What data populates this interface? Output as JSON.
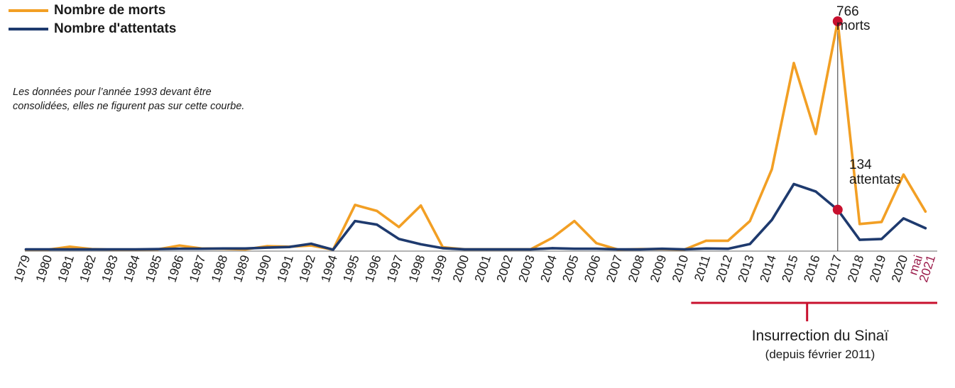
{
  "chart_data": {
    "type": "line",
    "categories": [
      "1979",
      "1980",
      "1981",
      "1982",
      "1983",
      "1984",
      "1985",
      "1986",
      "1987",
      "1988",
      "1989",
      "1990",
      "1991",
      "1992",
      "1994",
      "1995",
      "1996",
      "1997",
      "1998",
      "1999",
      "2000",
      "2001",
      "2002",
      "2003",
      "2004",
      "2005",
      "2006",
      "2007",
      "2008",
      "2009",
      "2010",
      "2011",
      "2012",
      "2013",
      "2014",
      "2015",
      "2016",
      "2017",
      "2018",
      "2019",
      "2020",
      "mai 2021"
    ],
    "series": [
      {
        "name": "Nombre de morts",
        "color": "#f29f24",
        "values": [
          0,
          0,
          10,
          2,
          0,
          0,
          1,
          14,
          4,
          3,
          1,
          12,
          10,
          14,
          0,
          150,
          130,
          76,
          148,
          8,
          1,
          1,
          1,
          1,
          40,
          96,
          22,
          0,
          2,
          2,
          0,
          30,
          30,
          96,
          270,
          626,
          388,
          766,
          86,
          93,
          252,
          128
        ]
      },
      {
        "name": "Nombre d'attentats",
        "color": "#1e3a6e",
        "values": [
          1,
          1,
          1,
          1,
          1,
          1,
          2,
          3,
          3,
          4,
          4,
          7,
          9,
          20,
          0,
          96,
          84,
          36,
          18,
          5,
          1,
          1,
          1,
          1,
          5,
          3,
          3,
          1,
          1,
          3,
          1,
          4,
          3,
          19,
          100,
          220,
          195,
          134,
          33,
          36,
          105,
          72
        ]
      }
    ],
    "legend": {
      "position": "top-left"
    },
    "annotations": {
      "deaths_peak": {
        "value": "766",
        "unit": "morts"
      },
      "attacks_peak": {
        "value": "134",
        "unit": "attentats"
      },
      "note": "Les données pour l’année 1993 devant être consolidées, elles ne figurent pas sur cette courbe.",
      "period_label": "Insurrection du Sinaï",
      "period_sub": "(depuis février 2011)"
    },
    "accent_color": "#c8102e",
    "last_category_color": "#9b1b4a"
  }
}
